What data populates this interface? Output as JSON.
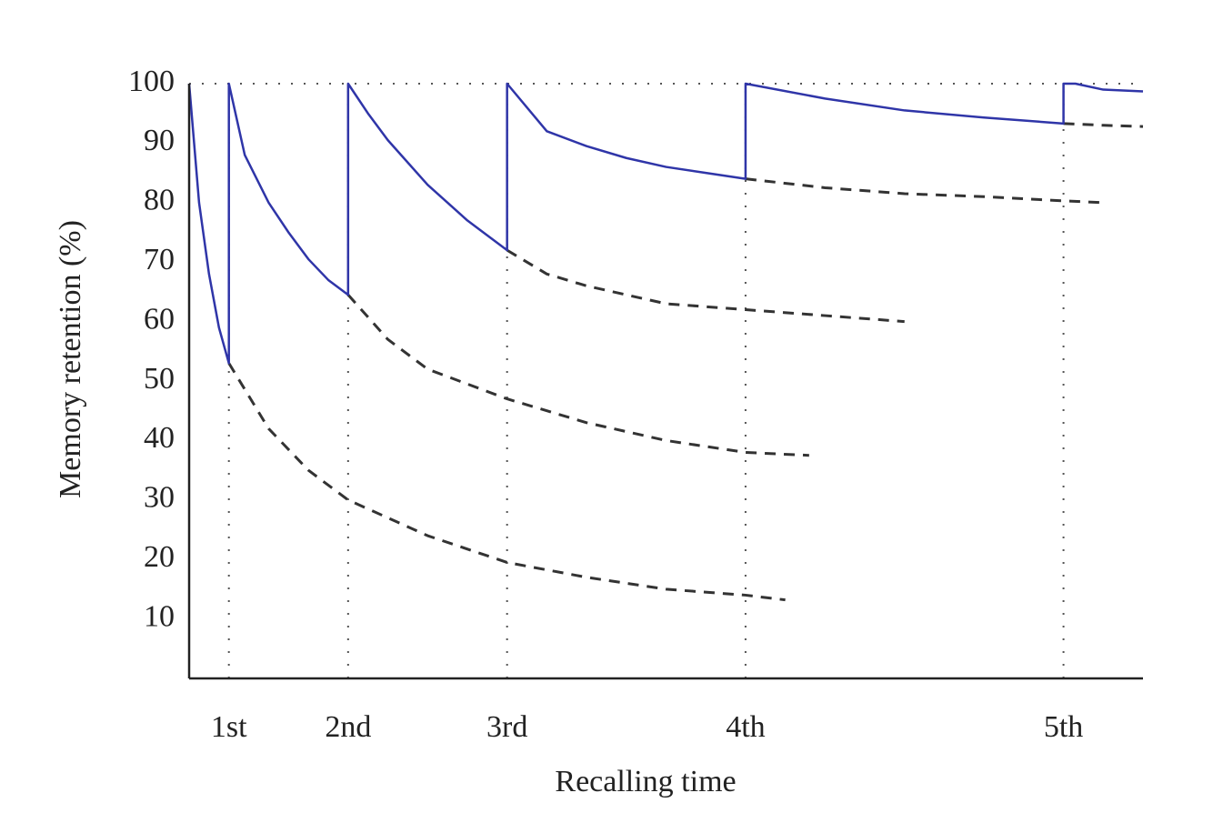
{
  "chart_data": {
    "type": "line",
    "xlabel": "Recalling time",
    "ylabel": "Memory retention (%)",
    "xlim": [
      0,
      24
    ],
    "ylim": [
      0,
      100
    ],
    "xticks": [
      {
        "value": 1,
        "label": "1st"
      },
      {
        "value": 4,
        "label": "2nd"
      },
      {
        "value": 8,
        "label": "3rd"
      },
      {
        "value": 14,
        "label": "4th"
      },
      {
        "value": 22,
        "label": "5th"
      }
    ],
    "yticks": [
      10,
      20,
      30,
      40,
      50,
      60,
      70,
      80,
      90,
      100
    ],
    "grid": true,
    "series": [
      {
        "color": "#2f35a8",
        "dashed": false,
        "x": [
          0,
          0.25,
          0.5,
          0.75,
          1,
          1,
          1.4,
          2,
          2.5,
          3,
          3.5,
          4,
          4,
          4.5,
          5,
          6,
          7,
          8,
          8,
          9,
          10,
          11,
          12,
          13,
          14,
          14,
          16,
          18,
          20,
          22,
          22,
          22.3,
          23,
          24
        ],
        "values": [
          100,
          80,
          68,
          59,
          53,
          100,
          88,
          80,
          75,
          70.5,
          67,
          64.5,
          100,
          95,
          90.5,
          83,
          77,
          72,
          100,
          92,
          89.5,
          87.5,
          86,
          85,
          84,
          100,
          97.5,
          95.5,
          94.3,
          93.3,
          100,
          100,
          99,
          98.7
        ]
      },
      {
        "color": "#333333",
        "dashed": true,
        "x": [
          1,
          2,
          3,
          4,
          6,
          8,
          10,
          12,
          14,
          15
        ],
        "values": [
          53,
          42,
          35,
          30,
          24,
          19.5,
          17,
          15,
          14,
          13.2
        ]
      },
      {
        "color": "#333333",
        "dashed": true,
        "x": [
          4,
          5,
          6,
          8,
          10,
          12,
          14,
          15.6
        ],
        "values": [
          64.5,
          57,
          52,
          47,
          43,
          40,
          38,
          37.5
        ]
      },
      {
        "color": "#333333",
        "dashed": true,
        "x": [
          8,
          9,
          10,
          12,
          14,
          16,
          18
        ],
        "values": [
          72,
          68,
          66,
          63,
          62,
          61,
          60
        ]
      },
      {
        "color": "#333333",
        "dashed": true,
        "x": [
          14,
          16,
          18,
          20,
          22,
          23
        ],
        "values": [
          84,
          82.5,
          81.5,
          81,
          80.3,
          80
        ]
      },
      {
        "color": "#333333",
        "dashed": true,
        "x": [
          22,
          23,
          24
        ],
        "values": [
          93.3,
          93,
          92.8
        ]
      }
    ]
  }
}
